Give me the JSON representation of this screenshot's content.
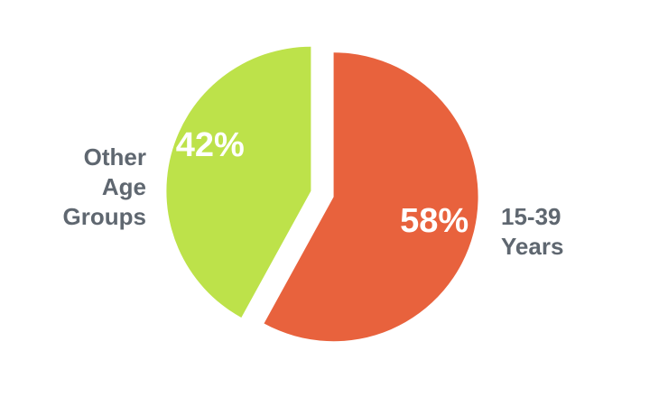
{
  "chart_data": {
    "type": "pie",
    "categories": [
      "15-39 Years",
      "Other Age Groups"
    ],
    "values": [
      58,
      42
    ],
    "value_labels": [
      "58%",
      "42%"
    ],
    "colors": [
      "#e8623d",
      "#bde24a"
    ]
  }
}
